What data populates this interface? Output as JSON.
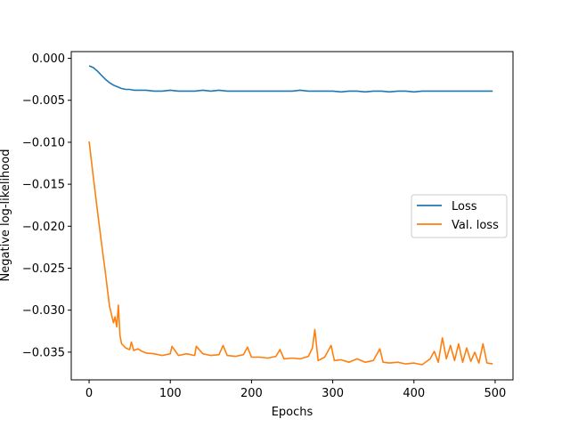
{
  "chart_data": {
    "type": "line",
    "title": "",
    "xlabel": "Epochs",
    "ylabel": "Negative log-likelihood",
    "xlim": [
      -22,
      522
    ],
    "ylim": [
      -0.0383,
      0.0008
    ],
    "xticks": [
      0,
      100,
      200,
      300,
      400,
      500
    ],
    "xtick_labels": [
      "0",
      "100",
      "200",
      "300",
      "400",
      "500"
    ],
    "yticks": [
      0.0,
      -0.005,
      -0.01,
      -0.015,
      -0.02,
      -0.025,
      -0.03,
      -0.035
    ],
    "ytick_labels": [
      "0.000",
      "−0.005",
      "−0.010",
      "−0.015",
      "−0.020",
      "−0.025",
      "−0.030",
      "−0.035"
    ],
    "grid": false,
    "legend_position": "center-right",
    "series": [
      {
        "name": "Loss",
        "color": "#1f77b4",
        "x": [
          0,
          5,
          10,
          15,
          20,
          25,
          30,
          35,
          40,
          45,
          50,
          55,
          60,
          70,
          80,
          90,
          100,
          110,
          120,
          130,
          140,
          150,
          160,
          170,
          180,
          190,
          200,
          210,
          220,
          230,
          240,
          250,
          260,
          270,
          280,
          290,
          300,
          310,
          320,
          330,
          340,
          350,
          360,
          370,
          380,
          390,
          400,
          410,
          420,
          430,
          440,
          450,
          460,
          470,
          480,
          490,
          497
        ],
        "y": [
          -0.0009,
          -0.0011,
          -0.0015,
          -0.002,
          -0.0025,
          -0.0029,
          -0.0032,
          -0.0034,
          -0.0036,
          -0.0037,
          -0.0037,
          -0.0038,
          -0.0038,
          -0.0038,
          -0.0039,
          -0.0039,
          -0.0038,
          -0.0039,
          -0.0039,
          -0.0039,
          -0.0038,
          -0.0039,
          -0.0038,
          -0.0039,
          -0.0039,
          -0.0039,
          -0.0039,
          -0.0039,
          -0.0039,
          -0.0039,
          -0.0039,
          -0.0039,
          -0.0038,
          -0.0039,
          -0.0039,
          -0.0039,
          -0.0039,
          -0.004,
          -0.0039,
          -0.0039,
          -0.004,
          -0.0039,
          -0.0039,
          -0.004,
          -0.0039,
          -0.0039,
          -0.004,
          -0.0039,
          -0.0039,
          -0.0039,
          -0.0039,
          -0.0039,
          -0.0039,
          -0.0039,
          -0.0039,
          -0.0039,
          -0.0039
        ]
      },
      {
        "name": "Val. loss",
        "color": "#ff7f0e",
        "x": [
          0,
          5,
          10,
          15,
          20,
          25,
          30,
          32,
          34,
          36,
          38,
          40,
          45,
          50,
          52,
          55,
          60,
          65,
          70,
          80,
          90,
          100,
          102,
          110,
          120,
          130,
          132,
          140,
          150,
          160,
          165,
          170,
          180,
          190,
          195,
          200,
          210,
          220,
          230,
          235,
          240,
          250,
          260,
          270,
          275,
          278,
          282,
          290,
          298,
          302,
          310,
          320,
          330,
          340,
          350,
          358,
          362,
          370,
          380,
          390,
          400,
          410,
          420,
          425,
          430,
          435,
          440,
          445,
          450,
          455,
          460,
          465,
          470,
          475,
          480,
          485,
          490,
          497
        ],
        "y": [
          -0.0099,
          -0.014,
          -0.018,
          -0.0218,
          -0.0255,
          -0.0295,
          -0.0315,
          -0.0308,
          -0.032,
          -0.0294,
          -0.033,
          -0.034,
          -0.0345,
          -0.0347,
          -0.0338,
          -0.0348,
          -0.0346,
          -0.0349,
          -0.0351,
          -0.0352,
          -0.0354,
          -0.0352,
          -0.0343,
          -0.0354,
          -0.0352,
          -0.0354,
          -0.0343,
          -0.0352,
          -0.0354,
          -0.0353,
          -0.0342,
          -0.0354,
          -0.0355,
          -0.0353,
          -0.0344,
          -0.0356,
          -0.0356,
          -0.0357,
          -0.0355,
          -0.0347,
          -0.0358,
          -0.0357,
          -0.0358,
          -0.0355,
          -0.0345,
          -0.0323,
          -0.036,
          -0.0356,
          -0.0342,
          -0.036,
          -0.0359,
          -0.0362,
          -0.0358,
          -0.0362,
          -0.036,
          -0.0346,
          -0.0362,
          -0.0363,
          -0.0362,
          -0.0364,
          -0.0363,
          -0.0365,
          -0.0358,
          -0.0349,
          -0.0362,
          -0.0333,
          -0.0358,
          -0.0342,
          -0.036,
          -0.034,
          -0.0362,
          -0.0345,
          -0.0361,
          -0.035,
          -0.0363,
          -0.034,
          -0.0363,
          -0.0364
        ]
      }
    ]
  }
}
